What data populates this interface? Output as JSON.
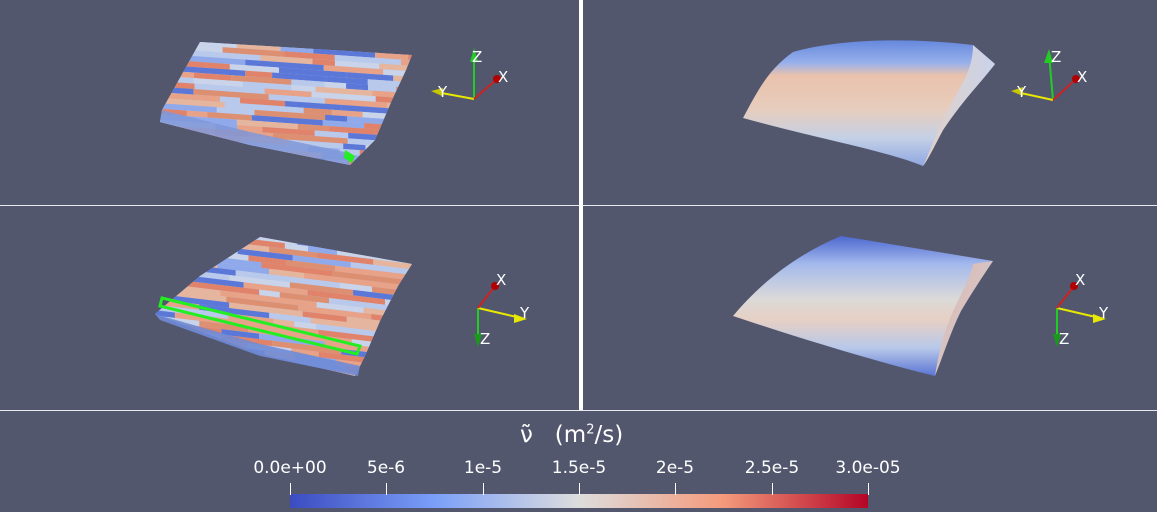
{
  "views": [
    {
      "id": "top-left",
      "render": "cells",
      "highlight": "corner",
      "axes": {
        "x": "X",
        "y": "Y",
        "z": "Z"
      }
    },
    {
      "id": "top-right",
      "render": "smooth",
      "axes": {
        "x": "X",
        "y": "Y",
        "z": "Z"
      }
    },
    {
      "id": "bottom-left",
      "render": "cells",
      "highlight": "edge",
      "axes": {
        "x": "X",
        "y": "Y",
        "z": "Z"
      }
    },
    {
      "id": "bottom-right",
      "render": "smooth",
      "axes": {
        "x": "X",
        "y": "Y",
        "z": "Z"
      }
    }
  ],
  "legend": {
    "symbol": "ν̃",
    "unit_prefix": "(m",
    "unit_sup": "2",
    "unit_suffix": "/s)",
    "ticks": [
      "0.0e+00",
      "5e-6",
      "1e-5",
      "1.5e-5",
      "2e-5",
      "2.5e-5",
      "3.0e-05"
    ],
    "range": [
      0,
      3e-05
    ],
    "tick_values": [
      0,
      5e-06,
      1e-05,
      1.5e-05,
      2e-05,
      2.5e-05,
      3e-05
    ],
    "colormap": "Cool to Warm",
    "colors": {
      "low": "#3b4cc0",
      "mid": "#dddddd",
      "high": "#b40426"
    }
  },
  "colors": {
    "background": "#52576e",
    "highlight": "#22ee22",
    "x_axis": "#cc2222",
    "y_axis": "#e8e800",
    "z_axis": "#22cc22"
  }
}
